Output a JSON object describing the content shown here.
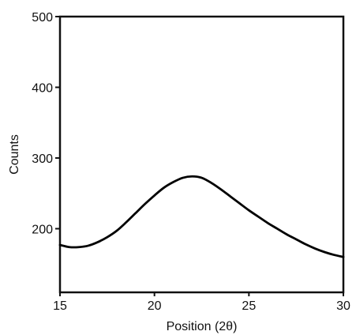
{
  "chart_data": {
    "type": "line",
    "title": "",
    "xlabel": "Position (2θ)",
    "ylabel": "Counts",
    "xlim": [
      15,
      30
    ],
    "ylim": [
      110,
      500
    ],
    "x_ticks": [
      15,
      20,
      25,
      30
    ],
    "y_ticks": [
      200,
      300,
      400,
      500
    ],
    "grid": false,
    "legend": "none",
    "series": [
      {
        "color": "#000000",
        "points": [
          [
            15,
            177
          ],
          [
            15.5,
            174
          ],
          [
            16,
            174
          ],
          [
            16.5,
            176
          ],
          [
            17,
            181
          ],
          [
            17.5,
            188
          ],
          [
            18,
            197
          ],
          [
            18.5,
            209
          ],
          [
            19,
            222
          ],
          [
            19.5,
            235
          ],
          [
            20,
            247
          ],
          [
            20.5,
            258
          ],
          [
            21,
            266
          ],
          [
            21.5,
            272
          ],
          [
            22,
            274
          ],
          [
            22.5,
            272
          ],
          [
            23,
            265
          ],
          [
            23.5,
            256
          ],
          [
            24,
            246
          ],
          [
            24.5,
            236
          ],
          [
            25,
            226
          ],
          [
            25.5,
            217
          ],
          [
            26,
            208
          ],
          [
            26.5,
            200
          ],
          [
            27,
            192
          ],
          [
            27.5,
            185
          ],
          [
            28,
            178
          ],
          [
            28.5,
            172
          ],
          [
            29,
            167
          ],
          [
            29.5,
            163
          ],
          [
            30,
            160
          ]
        ]
      }
    ]
  }
}
